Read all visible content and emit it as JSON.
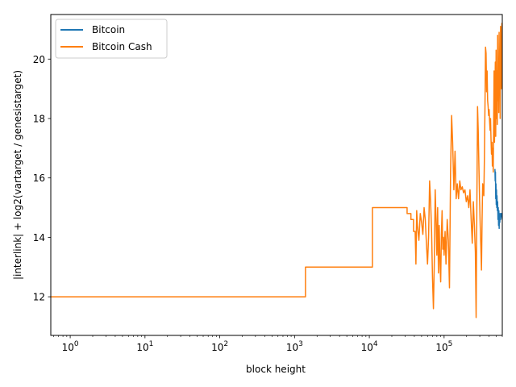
{
  "chart_data": {
    "type": "line",
    "title": "",
    "xlabel": "block height",
    "ylabel": "|interlink| + log2(vartarget / genesistarget)",
    "x_scale": "log",
    "xlim": [
      0.55,
      600000
    ],
    "ylim": [
      10.7,
      21.5
    ],
    "x_ticks": [
      {
        "value": 1,
        "base": "10",
        "exp": "0"
      },
      {
        "value": 10,
        "base": "10",
        "exp": "1"
      },
      {
        "value": 100,
        "base": "10",
        "exp": "2"
      },
      {
        "value": 1000,
        "base": "10",
        "exp": "3"
      },
      {
        "value": 10000,
        "base": "10",
        "exp": "4"
      },
      {
        "value": 100000,
        "base": "10",
        "exp": "5"
      }
    ],
    "y_ticks": [
      {
        "value": 12,
        "label": "12"
      },
      {
        "value": 14,
        "label": "14"
      },
      {
        "value": 16,
        "label": "16"
      },
      {
        "value": 18,
        "label": "18"
      },
      {
        "value": 20,
        "label": "20"
      }
    ],
    "grid": false,
    "legend_position": "top-left",
    "series": [
      {
        "name": "Bitcoin",
        "color": "#1f77b4",
        "points": [
          [
            478500,
            16.3
          ],
          [
            482000,
            15.9
          ],
          [
            486000,
            16.2
          ],
          [
            490000,
            15.3
          ],
          [
            494000,
            15.8
          ],
          [
            498000,
            15.1
          ],
          [
            502000,
            15.6
          ],
          [
            506000,
            15.0
          ],
          [
            510000,
            15.4
          ],
          [
            515000,
            14.9
          ],
          [
            520000,
            15.2
          ],
          [
            525000,
            14.6
          ],
          [
            530000,
            15.0
          ],
          [
            535000,
            14.4
          ],
          [
            540000,
            14.9
          ],
          [
            545000,
            14.3
          ],
          [
            550000,
            14.8
          ],
          [
            556000,
            14.5
          ],
          [
            562000,
            14.8
          ],
          [
            568000,
            14.6
          ],
          [
            575000,
            14.8
          ],
          [
            582000,
            14.7
          ],
          [
            590000,
            14.8
          ],
          [
            600000,
            14.6
          ]
        ]
      },
      {
        "name": "Bitcoin Cash",
        "color": "#ff7f0e",
        "points": [
          [
            0.55,
            12
          ],
          [
            1400,
            12
          ],
          [
            1400,
            13
          ],
          [
            11000,
            13
          ],
          [
            11000,
            15
          ],
          [
            32000,
            15
          ],
          [
            32000,
            14.8
          ],
          [
            36000,
            14.8
          ],
          [
            36000,
            14.6
          ],
          [
            39000,
            14.6
          ],
          [
            39000,
            14.2
          ],
          [
            41000,
            14.2
          ],
          [
            42000,
            13.1
          ],
          [
            43000,
            14.9
          ],
          [
            44000,
            14.4
          ],
          [
            46000,
            13.9
          ],
          [
            48000,
            14.8
          ],
          [
            50000,
            14.5
          ],
          [
            52000,
            14.1
          ],
          [
            54000,
            15.0
          ],
          [
            56000,
            14.6
          ],
          [
            58000,
            13.8
          ],
          [
            60000,
            13.1
          ],
          [
            62000,
            14.0
          ],
          [
            64000,
            15.9
          ],
          [
            66000,
            15.2
          ],
          [
            68000,
            14.2
          ],
          [
            70000,
            12.6
          ],
          [
            72000,
            11.6
          ],
          [
            74000,
            13.2
          ],
          [
            76000,
            15.6
          ],
          [
            78000,
            14.6
          ],
          [
            80000,
            13.4
          ],
          [
            82000,
            15.0
          ],
          [
            84000,
            12.8
          ],
          [
            86000,
            14.4
          ],
          [
            88000,
            13.2
          ],
          [
            90000,
            12.5
          ],
          [
            92000,
            14.1
          ],
          [
            94000,
            14.9
          ],
          [
            96000,
            13.6
          ],
          [
            98000,
            14.0
          ],
          [
            100000,
            13.4
          ],
          [
            103000,
            14.2
          ],
          [
            106000,
            13.1
          ],
          [
            110000,
            14.6
          ],
          [
            114000,
            13.9
          ],
          [
            118000,
            12.3
          ],
          [
            122000,
            16.2
          ],
          [
            126000,
            18.1
          ],
          [
            130000,
            17.2
          ],
          [
            135000,
            15.6
          ],
          [
            140000,
            16.9
          ],
          [
            145000,
            15.3
          ],
          [
            150000,
            15.8
          ],
          [
            156000,
            15.3
          ],
          [
            162000,
            15.9
          ],
          [
            168000,
            15.6
          ],
          [
            175000,
            15.7
          ],
          [
            182000,
            15.5
          ],
          [
            190000,
            15.6
          ],
          [
            198000,
            15.2
          ],
          [
            206000,
            15.4
          ],
          [
            214000,
            15.0
          ],
          [
            222000,
            15.6
          ],
          [
            230000,
            14.6
          ],
          [
            238000,
            13.8
          ],
          [
            246000,
            15.2
          ],
          [
            254000,
            14.4
          ],
          [
            262000,
            13.5
          ],
          [
            268000,
            11.3
          ],
          [
            274000,
            15.0
          ],
          [
            280000,
            18.4
          ],
          [
            286000,
            17.6
          ],
          [
            292000,
            16.4
          ],
          [
            298000,
            15.3
          ],
          [
            304000,
            14.4
          ],
          [
            310000,
            13.7
          ],
          [
            316000,
            12.9
          ],
          [
            322000,
            14.6
          ],
          [
            328000,
            15.8
          ],
          [
            334000,
            15.6
          ],
          [
            340000,
            15.4
          ],
          [
            346000,
            16.7
          ],
          [
            352000,
            18.4
          ],
          [
            358000,
            20.4
          ],
          [
            364000,
            20.2
          ],
          [
            370000,
            18.9
          ],
          [
            376000,
            19.6
          ],
          [
            382000,
            18.6
          ],
          [
            388000,
            18.4
          ],
          [
            394000,
            18.1
          ],
          [
            400000,
            18.3
          ],
          [
            406000,
            17.9
          ],
          [
            412000,
            17.6
          ],
          [
            418000,
            18.0
          ],
          [
            424000,
            17.3
          ],
          [
            430000,
            16.8
          ],
          [
            436000,
            17.2
          ],
          [
            442000,
            16.4
          ],
          [
            448000,
            17.0
          ],
          [
            454000,
            16.2
          ],
          [
            460000,
            17.9
          ],
          [
            466000,
            19.6
          ],
          [
            472000,
            17.2
          ],
          [
            478500,
            18.9
          ],
          [
            484000,
            19.9
          ],
          [
            490000,
            17.4
          ],
          [
            496000,
            20.3
          ],
          [
            502000,
            18.0
          ],
          [
            508000,
            19.6
          ],
          [
            514000,
            17.8
          ],
          [
            520000,
            20.8
          ],
          [
            526000,
            18.6
          ],
          [
            532000,
            19.9
          ],
          [
            538000,
            18.2
          ],
          [
            544000,
            20.9
          ],
          [
            550000,
            18.8
          ],
          [
            556000,
            20.2
          ],
          [
            562000,
            18.0
          ],
          [
            568000,
            21.1
          ],
          [
            574000,
            19.4
          ],
          [
            580000,
            20.7
          ],
          [
            586000,
            19.0
          ],
          [
            592000,
            21.2
          ],
          [
            600000,
            20.5
          ]
        ]
      }
    ]
  }
}
